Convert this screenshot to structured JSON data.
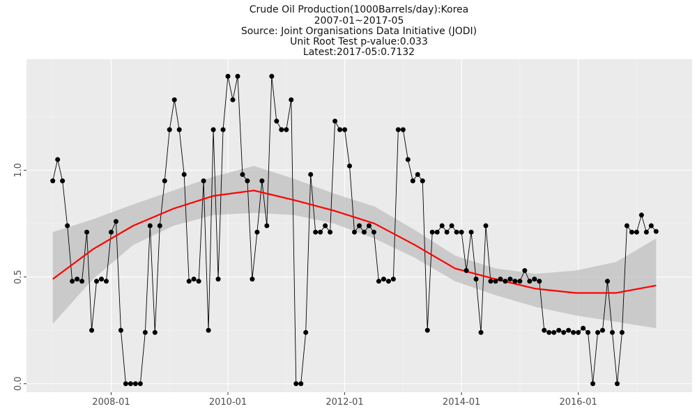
{
  "chart_data": {
    "type": "line",
    "title_lines": [
      "Crude Oil Production(1000Barrels/day):Korea",
      "2007-01~2017-05",
      "Source: Joint Organisations Data Initiative (JODI)",
      "Unit Root Test p-value:0.033",
      "Latest:2017-05:0.7132"
    ],
    "xlabel": "",
    "ylabel": "",
    "x_start": "2007-01",
    "x_end": "2017-05",
    "x_ticks": [
      "2008-01",
      "2010-01",
      "2012-01",
      "2014-01",
      "2016-01"
    ],
    "y_ticks": [
      "0.0",
      "0.5",
      "1.0"
    ],
    "ylim": [
      -0.04,
      1.52
    ],
    "grid": true,
    "series": [
      {
        "style": "line-with-points",
        "color": "#000000",
        "values": [
          0.95,
          1.05,
          0.95,
          0.74,
          0.48,
          0.49,
          0.48,
          0.71,
          0.25,
          0.48,
          0.49,
          0.48,
          0.71,
          0.76,
          0.25,
          0.0,
          0.0,
          0.0,
          0.0,
          0.24,
          0.74,
          0.24,
          0.74,
          0.95,
          1.19,
          1.33,
          1.19,
          0.98,
          0.48,
          0.49,
          0.48,
          0.95,
          0.25,
          1.19,
          0.49,
          1.19,
          1.44,
          1.33,
          1.44,
          0.98,
          0.95,
          0.49,
          0.71,
          0.95,
          0.74,
          1.44,
          1.23,
          1.19,
          1.19,
          1.33,
          0.0,
          0.0,
          0.24,
          0.98,
          0.71,
          0.71,
          0.74,
          0.71,
          1.23,
          1.19,
          1.19,
          1.02,
          0.71,
          0.74,
          0.71,
          0.74,
          0.71,
          0.48,
          0.49,
          0.48,
          0.49,
          1.19,
          1.19,
          1.05,
          0.95,
          0.98,
          0.95,
          0.25,
          0.71,
          0.71,
          0.74,
          0.71,
          0.74,
          0.71,
          0.71,
          0.53,
          0.71,
          0.49,
          0.24,
          0.74,
          0.48,
          0.48,
          0.49,
          0.48,
          0.49,
          0.48,
          0.48,
          0.53,
          0.48,
          0.49,
          0.48,
          0.25,
          0.24,
          0.24,
          0.25,
          0.24,
          0.25,
          0.24,
          0.24,
          0.26,
          0.24,
          0.0,
          0.24,
          0.25,
          0.48,
          0.24,
          0.0,
          0.24,
          0.74,
          0.71,
          0.71,
          0.79,
          0.71,
          0.74,
          0.7132
        ]
      },
      {
        "style": "smooth",
        "color": "#ff0000",
        "band_color": "#bfbfbf",
        "values": [
          0.49,
          0.63,
          0.74,
          0.82,
          0.88,
          0.905,
          0.86,
          0.81,
          0.75,
          0.65,
          0.54,
          0.49,
          0.445,
          0.425,
          0.425,
          0.46
        ],
        "band_lower": [
          0.28,
          0.49,
          0.65,
          0.74,
          0.79,
          0.8,
          0.79,
          0.75,
          0.68,
          0.59,
          0.48,
          0.415,
          0.36,
          0.32,
          0.29,
          0.26
        ],
        "band_upper": [
          0.71,
          0.77,
          0.84,
          0.905,
          0.97,
          1.02,
          0.96,
          0.89,
          0.83,
          0.72,
          0.6,
          0.54,
          0.515,
          0.53,
          0.57,
          0.68
        ]
      }
    ]
  }
}
